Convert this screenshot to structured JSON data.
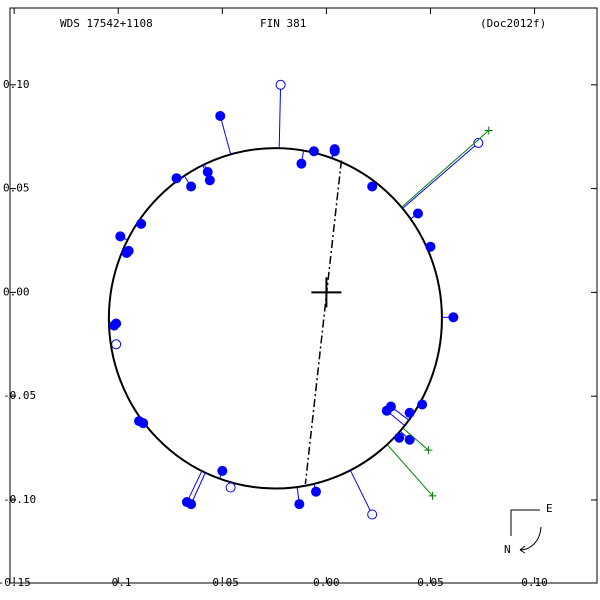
{
  "chart_data": {
    "type": "scatter",
    "title": "WDS 17542+1108",
    "subtitle": "FIN 381",
    "annotation": "(Doc2012f)",
    "xlim": [
      -0.152,
      0.13
    ],
    "ylim": [
      -0.14,
      0.137
    ],
    "xticks": [
      -0.15,
      -0.1,
      -0.05,
      {
        "value": 0,
        "label": "0.00"
      },
      0.05,
      {
        "value": 0.1,
        "label": "0.10"
      }
    ],
    "yticks": [
      {
        "value": 0.1,
        "label": "0.10"
      },
      0.05,
      {
        "value": 0,
        "label": "0.00"
      },
      -0.05,
      {
        "value": -0.1,
        "label": "-0.10"
      }
    ],
    "orbit": {
      "cx": -0.0245,
      "cy": -0.0125,
      "rx": 0.08,
      "ry": 0.082,
      "color": "#000000"
    },
    "node_line": {
      "x": [
        0.0072,
        -0.0101
      ],
      "y": [
        0.0635,
        -0.0923
      ]
    },
    "primary": {
      "x": 0,
      "y": 0
    },
    "series": [
      {
        "color": "#0000ff",
        "marker": "filled",
        "x": [
          -0.051,
          -0.072,
          -0.065,
          -0.057,
          -0.056,
          -0.012,
          -0.006,
          0.004,
          0.004,
          0.022,
          0.044,
          0.05,
          0.061,
          0.046,
          0.04,
          0.035,
          0.04,
          0.031,
          0.029,
          -0.005,
          -0.013,
          -0.05,
          -0.065,
          -0.067,
          -0.088,
          -0.09,
          -0.102,
          -0.101,
          -0.096,
          -0.099,
          -0.089,
          -0.095
        ],
        "y": [
          0.085,
          0.055,
          0.051,
          0.058,
          0.054,
          0.062,
          0.068,
          0.069,
          0.068,
          0.051,
          0.038,
          0.022,
          -0.012,
          -0.054,
          -0.058,
          -0.07,
          -0.071,
          -0.055,
          -0.057,
          -0.096,
          -0.102,
          -0.086,
          -0.102,
          -0.101,
          -0.063,
          -0.062,
          -0.016,
          -0.015,
          0.019,
          0.027,
          0.033,
          0.02
        ]
      },
      {
        "color": "#0000ff",
        "marker": "open",
        "x": [
          -0.022,
          0.073,
          -0.101,
          0.022,
          -0.046
        ],
        "y": [
          0.1,
          0.072,
          -0.025,
          -0.107,
          -0.094
        ]
      },
      {
        "color": "#008000",
        "marker": "plus",
        "x": [
          0.078,
          0.049,
          0.051
        ],
        "y": [
          0.078,
          -0.076,
          -0.098
        ]
      }
    ],
    "compass": {
      "east": "E",
      "north": "N"
    }
  }
}
